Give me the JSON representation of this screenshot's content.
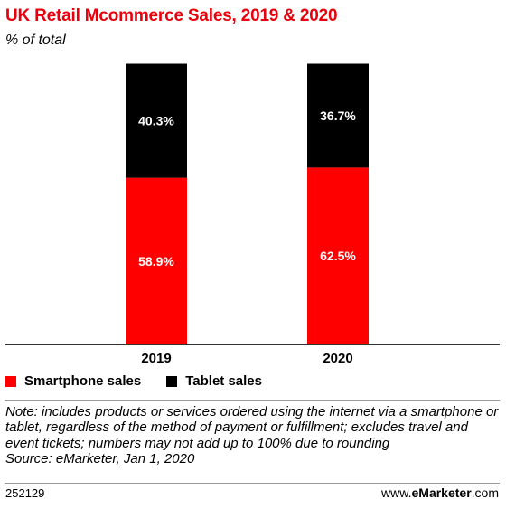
{
  "chart_data": {
    "type": "bar",
    "stacked": true,
    "title": "UK Retail Mcommerce Sales, 2019 & 2020",
    "subtitle": "% of total",
    "categories": [
      "2019",
      "2020"
    ],
    "series": [
      {
        "name": "Smartphone sales",
        "color": "#ff0000",
        "values": [
          58.9,
          62.5
        ],
        "labels": [
          "58.9%",
          "62.5%"
        ]
      },
      {
        "name": "Tablet sales",
        "color": "#000000",
        "values": [
          40.3,
          36.7
        ],
        "labels": [
          "40.3%",
          "36.7%"
        ]
      }
    ],
    "ylim": [
      0,
      100
    ],
    "grid": false,
    "legend_position": "bottom-left"
  },
  "note": "Note: includes products or services ordered using the internet via a smartphone or tablet, regardless of the method of payment or fulfillment; excludes travel and event tickets; numbers may not add up to 100% due to rounding",
  "source": "Source: eMarketer, Jan 1, 2020",
  "chart_id": "252129",
  "brand": {
    "prefix": "www.",
    "name": "eMarketer",
    "suffix": ".com"
  }
}
